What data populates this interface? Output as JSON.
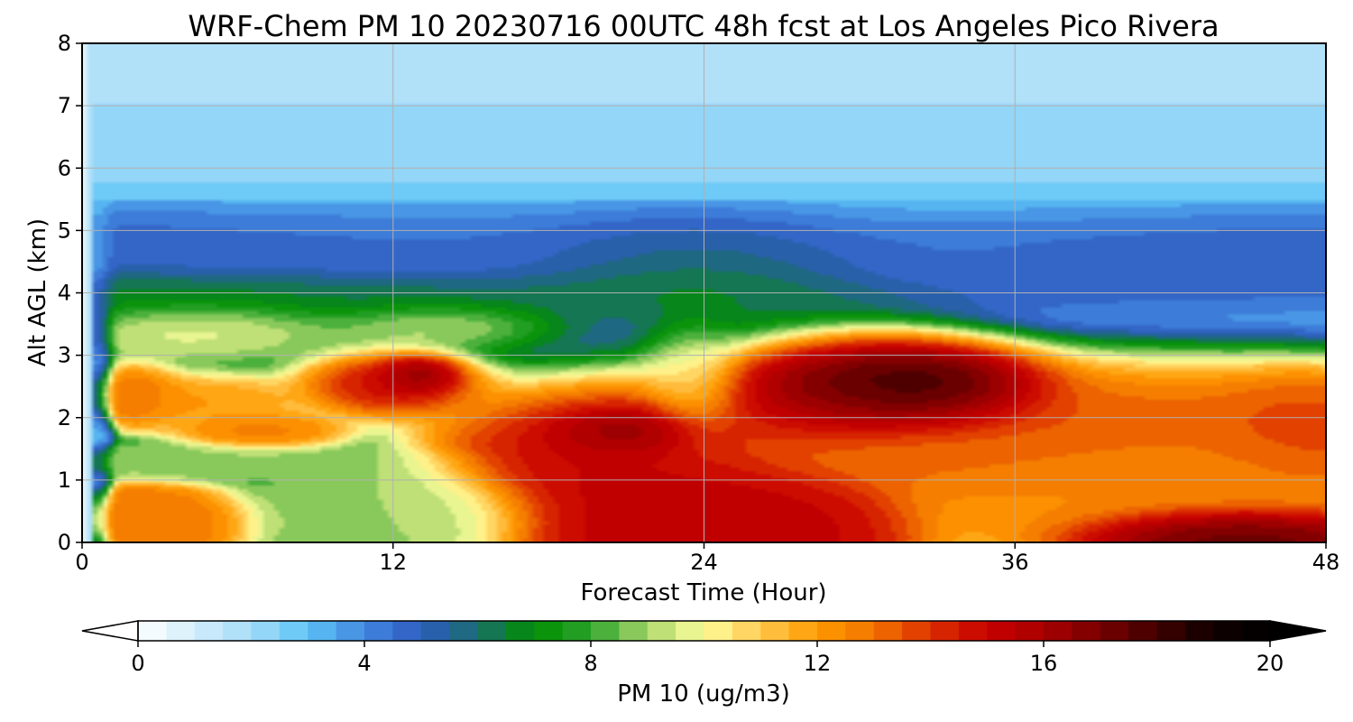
{
  "chart_data": {
    "type": "heatmap",
    "title": "WRF-Chem PM 10  20230716 00UTC 48h fcst at Los Angeles Pico Rivera",
    "xlabel": "Forecast Time (Hour)",
    "ylabel": "Alt AGL (km)",
    "xlim": [
      0,
      48
    ],
    "ylim": [
      0,
      8
    ],
    "x_ticks": [
      "0",
      "12",
      "24",
      "36",
      "48"
    ],
    "y_ticks": [
      "0",
      "1",
      "2",
      "3",
      "4",
      "5",
      "6",
      "7",
      "8"
    ],
    "grid": true,
    "colorbar": {
      "label": "PM 10  (ug/m3)",
      "range": [
        0,
        20
      ],
      "extend": "both",
      "ticks": [
        "0",
        "4",
        "8",
        "12",
        "16",
        "20"
      ],
      "colors": [
        {
          "value": 0,
          "color": "#ffffff"
        },
        {
          "value": 2,
          "color": "#a6dcf8"
        },
        {
          "value": 3,
          "color": "#5cc4f5"
        },
        {
          "value": 4,
          "color": "#4287e0"
        },
        {
          "value": 5,
          "color": "#2e5bbf"
        },
        {
          "value": 6,
          "color": "#1a6d6d"
        },
        {
          "value": 7,
          "color": "#008f00"
        },
        {
          "value": 8,
          "color": "#2da32d"
        },
        {
          "value": 9,
          "color": "#a8d66a"
        },
        {
          "value": 10,
          "color": "#ffff9c"
        },
        {
          "value": 11,
          "color": "#ffc850"
        },
        {
          "value": 12,
          "color": "#ff9a00"
        },
        {
          "value": 13,
          "color": "#f27400"
        },
        {
          "value": 14,
          "color": "#dc3000"
        },
        {
          "value": 15,
          "color": "#c80000"
        },
        {
          "value": 16,
          "color": "#a80000"
        },
        {
          "value": 17,
          "color": "#780000"
        },
        {
          "value": 18,
          "color": "#400000"
        },
        {
          "value": 19,
          "color": "#100000"
        },
        {
          "value": 20,
          "color": "#000000"
        }
      ]
    },
    "features": [
      {
        "hour": 0.5,
        "alt_km": 4.0,
        "sx": 0.5,
        "sy": 4.5,
        "value": 3
      },
      {
        "hour": 24,
        "alt_km": 7.0,
        "sx": 25,
        "sy": 3.5,
        "value": 2.6
      },
      {
        "hour": 36,
        "alt_km": 7.2,
        "sx": 14,
        "sy": 2.2,
        "value": 2.8
      },
      {
        "hour": 22,
        "alt_km": 4.8,
        "sx": 36,
        "sy": 0.6,
        "value": 5.5
      },
      {
        "hour": 42,
        "alt_km": 4.6,
        "sx": 10,
        "sy": 0.6,
        "value": 5.2
      },
      {
        "hour": 10,
        "alt_km": 4.0,
        "sx": 24,
        "sy": 0.35,
        "value": 7.2
      },
      {
        "hour": 24,
        "alt_km": 4.3,
        "sx": 6,
        "sy": 0.9,
        "value": 8
      },
      {
        "hour": 5,
        "alt_km": 3.4,
        "sx": 5,
        "sy": 0.45,
        "value": 10.5
      },
      {
        "hour": 14,
        "alt_km": 3.5,
        "sx": 4,
        "sy": 0.35,
        "value": 10.5
      },
      {
        "hour": 2,
        "alt_km": 2.4,
        "sx": 1.5,
        "sy": 0.4,
        "value": 13.5
      },
      {
        "hour": 5,
        "alt_km": 2.3,
        "sx": 3,
        "sy": 0.35,
        "value": 12.5
      },
      {
        "hour": 12,
        "alt_km": 2.6,
        "sx": 3,
        "sy": 0.45,
        "value": 16
      },
      {
        "hour": 13,
        "alt_km": 2.7,
        "sx": 1.3,
        "sy": 0.25,
        "value": 18
      },
      {
        "hour": 7,
        "alt_km": 1.8,
        "sx": 2.5,
        "sy": 0.25,
        "value": 13
      },
      {
        "hour": 4,
        "alt_km": 1.3,
        "sx": 7,
        "sy": 0.22,
        "value": 9
      },
      {
        "hour": 12,
        "alt_km": 0.6,
        "sx": 4,
        "sy": 0.55,
        "value": 9
      },
      {
        "hour": 2,
        "alt_km": 0.4,
        "sx": 3,
        "sy": 0.4,
        "value": 13
      },
      {
        "hour": 20,
        "alt_km": 1.5,
        "sx": 5,
        "sy": 1.0,
        "value": 15.5
      },
      {
        "hour": 21,
        "alt_km": 1.8,
        "sx": 2.5,
        "sy": 0.35,
        "value": 18
      },
      {
        "hour": 23.5,
        "alt_km": 2.7,
        "sx": 1.5,
        "sy": 0.8,
        "value": 10
      },
      {
        "hour": 24.5,
        "alt_km": 0.5,
        "sx": 5,
        "sy": 0.8,
        "value": 15.5
      },
      {
        "hour": 30,
        "alt_km": 2.6,
        "sx": 5,
        "sy": 0.75,
        "value": 20
      },
      {
        "hour": 33,
        "alt_km": 2.5,
        "sx": 3.5,
        "sy": 0.5,
        "value": 20
      },
      {
        "hour": 33,
        "alt_km": 1.4,
        "sx": 6,
        "sy": 0.35,
        "value": 13
      },
      {
        "hour": 36,
        "alt_km": 2.0,
        "sx": 12,
        "sy": 0.9,
        "value": 14
      },
      {
        "hour": 42,
        "alt_km": 1.0,
        "sx": 7,
        "sy": 0.8,
        "value": 12.5
      },
      {
        "hour": 44,
        "alt_km": 0.15,
        "sx": 4,
        "sy": 0.35,
        "value": 18
      },
      {
        "hour": 47,
        "alt_km": 1.8,
        "sx": 3,
        "sy": 0.7,
        "value": 14
      }
    ]
  }
}
